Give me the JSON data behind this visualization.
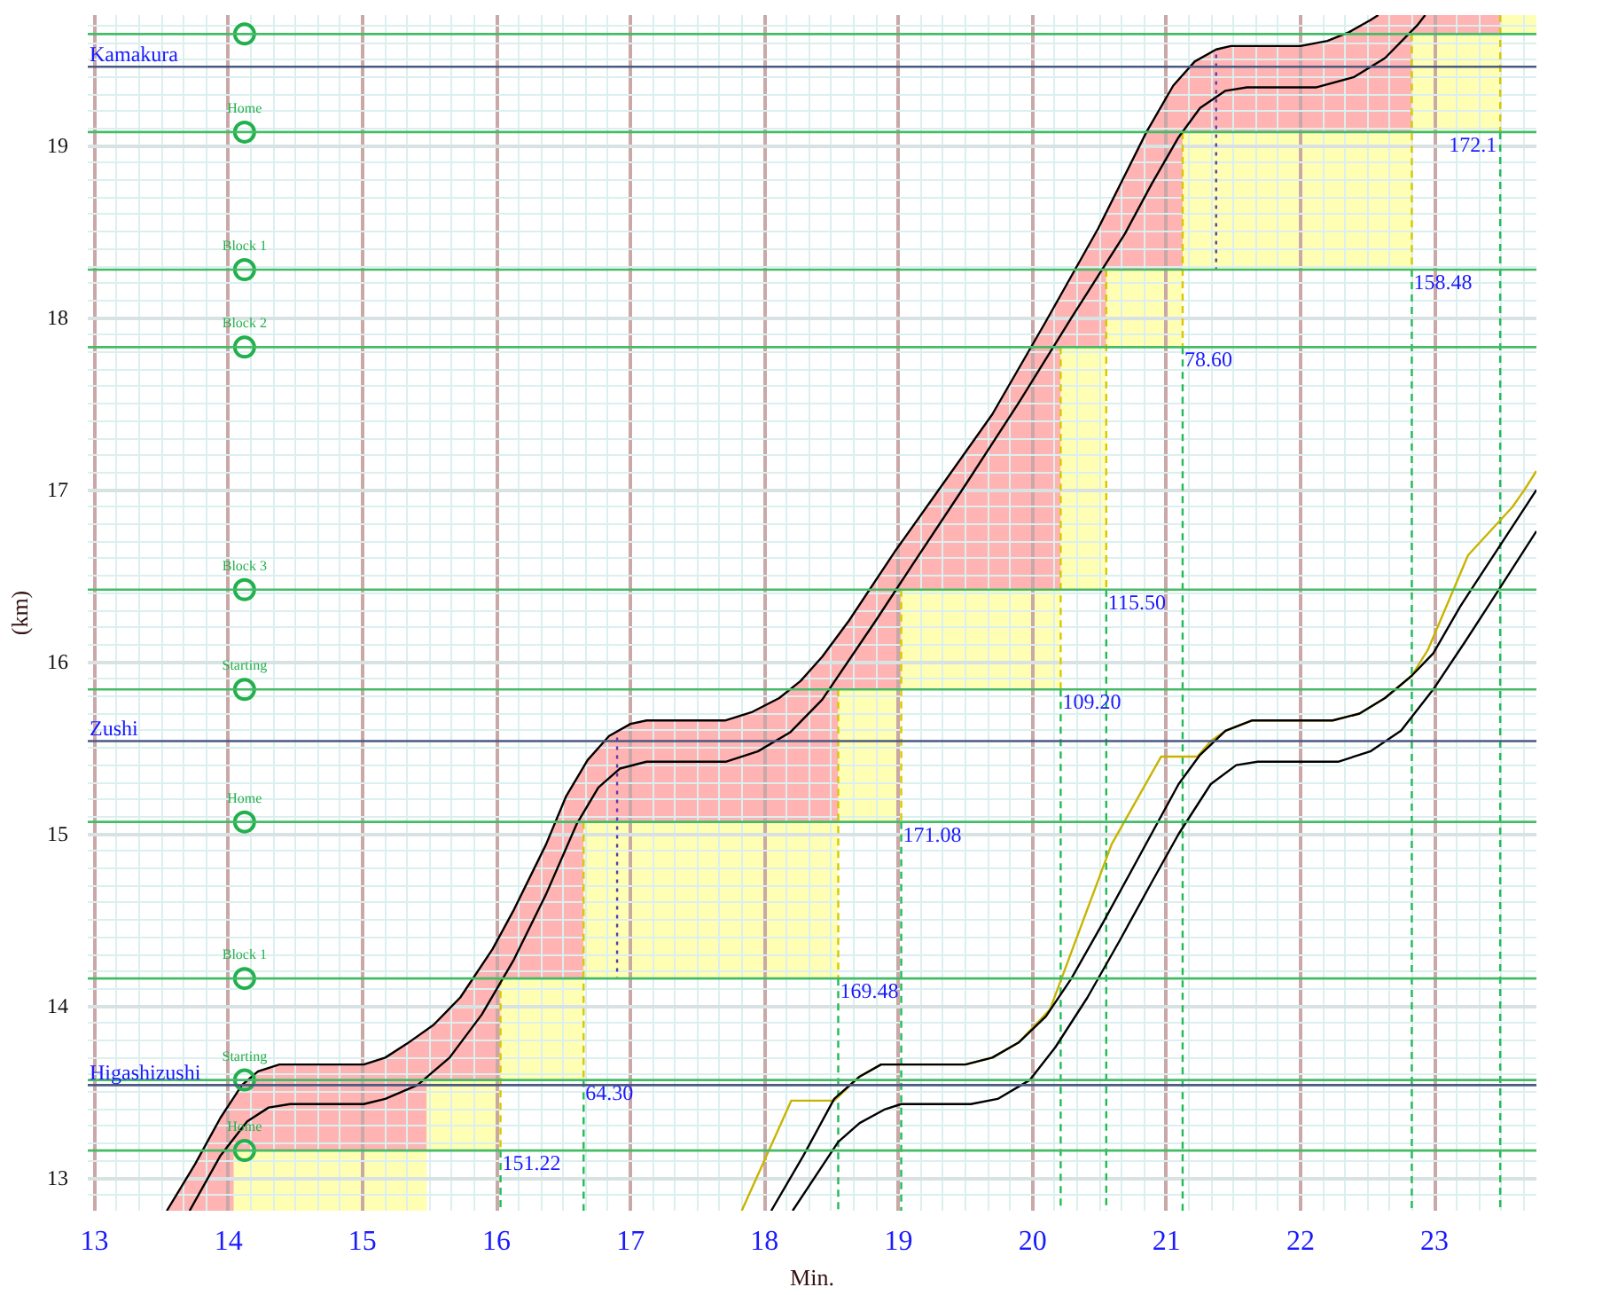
{
  "chart_data": {
    "type": "line",
    "xlabel": "Min.",
    "ylabel": "(km)",
    "xlim": [
      12.95,
      23.76
    ],
    "ylim": [
      12.81,
      19.76
    ],
    "xticks": [
      13,
      14,
      15,
      16,
      17,
      18,
      19,
      20,
      21,
      22,
      23
    ],
    "yticks": [
      13,
      14,
      15,
      16,
      17,
      18,
      19
    ],
    "grid": true,
    "ref_lines": [
      {
        "axis": "y",
        "value": 19.65,
        "color": "#44bb66"
      },
      {
        "axis": "y",
        "value": 19.08,
        "color": "#44bb66"
      },
      {
        "axis": "y",
        "value": 18.28,
        "color": "#44bb66"
      },
      {
        "axis": "y",
        "value": 17.83,
        "color": "#44bb66"
      },
      {
        "axis": "y",
        "value": 16.42,
        "color": "#44bb66"
      },
      {
        "axis": "y",
        "value": 15.84,
        "color": "#44bb66"
      },
      {
        "axis": "y",
        "value": 15.07,
        "color": "#44bb66"
      },
      {
        "axis": "y",
        "value": 14.16,
        "color": "#44bb66"
      },
      {
        "axis": "y",
        "value": 13.57,
        "color": "#44bb66"
      },
      {
        "axis": "y",
        "value": 13.16,
        "color": "#44bb66"
      },
      {
        "axis": "y",
        "value": 19.46,
        "label": "Kamakura",
        "color": "#4a5a80"
      },
      {
        "axis": "y",
        "value": 15.54,
        "label": "Zushi",
        "color": "#4a5a80"
      },
      {
        "axis": "y",
        "value": 13.54,
        "label": "Higashizushi",
        "color": "#4a5a80"
      }
    ],
    "annotations": [
      {
        "text": "151.22",
        "x": 16.03,
        "y": 13.16
      },
      {
        "text": "64.30",
        "x": 16.65,
        "y": 13.57
      },
      {
        "text": "169.48",
        "x": 18.55,
        "y": 14.16
      },
      {
        "text": "171.08",
        "x": 19.02,
        "y": 15.07
      },
      {
        "text": "109.20",
        "x": 20.21,
        "y": 15.84
      },
      {
        "text": "115.50",
        "x": 20.55,
        "y": 16.42
      },
      {
        "text": "78.60",
        "x": 21.12,
        "y": 17.83
      },
      {
        "text": "158.48",
        "x": 22.83,
        "y": 18.28
      },
      {
        "text": "172.1",
        "x": 23.49,
        "y": 19.08
      }
    ],
    "series": [
      {
        "color": "#ffb3b3",
        "x": [
          13.54,
          13.75,
          13.94,
          14.04,
          14.04,
          14.1,
          14.22,
          14.38,
          15.01,
          15.17,
          15.33,
          15.48,
          15.48,
          15.53,
          15.73,
          15.97,
          16.03,
          16.03,
          16.13,
          16.37,
          16.52,
          16.65,
          16.65,
          16.68,
          16.84,
          17.0,
          17.12,
          17.71,
          17.91,
          18.11,
          18.27,
          18.43,
          18.55,
          18.55,
          18.63,
          18.98,
          19.02,
          19.02,
          19.3,
          19.7,
          20.1,
          20.21,
          20.21,
          20.49,
          20.55,
          20.55,
          20.85,
          21.05,
          21.12,
          21.12,
          21.21,
          21.37,
          21.48,
          22.0,
          22.2,
          22.36,
          22.52,
          22.58,
          22.83,
          22.83,
          23.49
        ],
        "values": [
          null,
          null,
          null,
          null,
          null,
          null,
          null,
          null,
          null,
          null,
          null,
          null,
          null,
          null,
          null,
          null,
          null,
          null,
          null,
          null,
          null,
          null,
          null,
          null,
          null,
          null,
          null,
          null,
          null,
          null,
          null,
          null,
          null,
          null,
          null,
          null,
          null,
          null,
          null,
          null,
          null,
          null,
          null,
          null,
          null,
          null,
          null,
          null,
          null,
          null,
          null,
          null,
          null,
          null,
          null,
          null,
          null,
          null,
          null,
          null,
          null
        ],
        "upper": [
          12.81,
          13.08,
          13.35,
          13.47,
          13.47,
          13.54,
          13.62,
          13.66,
          13.66,
          13.7,
          13.78,
          13.86,
          13.86,
          13.89,
          14.05,
          14.33,
          14.42,
          14.42,
          14.56,
          14.94,
          15.22,
          15.39,
          15.39,
          15.43,
          15.57,
          15.64,
          15.66,
          15.66,
          15.71,
          15.79,
          15.89,
          16.03,
          16.16,
          16.16,
          16.24,
          16.65,
          16.69,
          16.69,
          17.0,
          17.44,
          17.98,
          18.13,
          18.13,
          18.52,
          18.61,
          18.61,
          19.08,
          19.35,
          19.41,
          19.41,
          19.49,
          19.56,
          19.58,
          19.58,
          19.61,
          19.66,
          19.73,
          19.76,
          19.76,
          19.76,
          19.76
        ],
        "lower": [
          12.81,
          12.81,
          12.81,
          12.81,
          13.16,
          13.16,
          13.16,
          13.16,
          13.16,
          13.16,
          13.16,
          13.16,
          13.57,
          13.57,
          13.57,
          13.57,
          13.57,
          14.16,
          14.16,
          14.16,
          14.16,
          14.16,
          15.07,
          15.07,
          15.07,
          15.07,
          15.07,
          15.07,
          15.07,
          15.07,
          15.07,
          15.07,
          15.07,
          15.84,
          15.84,
          15.84,
          15.84,
          16.42,
          16.42,
          16.42,
          16.42,
          16.42,
          17.83,
          17.83,
          17.83,
          18.28,
          18.28,
          18.28,
          18.28,
          19.08,
          19.08,
          19.08,
          19.08,
          19.08,
          19.08,
          19.08,
          19.08,
          19.08,
          19.08,
          19.65,
          19.65
        ]
      },
      {
        "color": "#ffffb3",
        "x": [
          14.04,
          15.48,
          15.48,
          16.03,
          16.03,
          16.65,
          16.65,
          18.55,
          18.55,
          19.02,
          19.02,
          20.21,
          20.21,
          20.55,
          20.55,
          21.12,
          21.12,
          22.83,
          22.83,
          23.49,
          23.49,
          23.76
        ],
        "values": [
          null,
          null,
          null,
          null,
          null,
          null,
          null,
          null,
          null,
          null,
          null,
          null,
          null,
          null,
          null,
          null,
          null,
          null,
          null,
          null,
          null,
          null
        ],
        "upper": [
          13.16,
          13.16,
          13.57,
          13.57,
          14.16,
          14.16,
          15.07,
          15.07,
          15.84,
          15.84,
          16.42,
          16.42,
          17.83,
          17.83,
          18.28,
          18.28,
          19.08,
          19.08,
          19.65,
          19.65,
          19.76,
          19.76
        ],
        "lower": [
          12.81,
          12.81,
          13.16,
          13.16,
          13.57,
          13.57,
          14.16,
          14.16,
          15.07,
          15.07,
          15.84,
          15.84,
          16.42,
          16.42,
          17.83,
          17.83,
          18.28,
          18.28,
          19.08,
          19.08,
          19.65,
          19.65
        ]
      },
      {
        "color": "#22bb55",
        "line_style": "dashed",
        "x": [
          16.03,
          16.03,
          null,
          16.65,
          16.65,
          null,
          18.55,
          18.55,
          null,
          19.02,
          19.02,
          null,
          20.21,
          20.21,
          null,
          20.55,
          20.55,
          null,
          21.12,
          21.12,
          null,
          22.83,
          22.83,
          null,
          23.49,
          23.49
        ],
        "values": [
          13.16,
          12.81,
          null,
          13.57,
          12.81,
          null,
          14.16,
          12.81,
          null,
          15.07,
          12.81,
          null,
          15.84,
          12.81,
          null,
          16.42,
          12.81,
          null,
          17.83,
          12.81,
          null,
          18.28,
          12.81,
          null,
          19.08,
          12.81
        ]
      },
      {
        "color": "#d8c800",
        "line_style": "dashed",
        "x": [
          16.03,
          16.03,
          null,
          16.65,
          16.65,
          null,
          18.55,
          18.55,
          null,
          19.02,
          19.02,
          null,
          20.21,
          20.21,
          null,
          20.55,
          20.55,
          null,
          21.12,
          21.12,
          null,
          22.83,
          22.83,
          null,
          23.49,
          23.49
        ],
        "values": [
          14.16,
          13.16,
          null,
          15.07,
          13.57,
          null,
          15.84,
          14.16,
          null,
          16.42,
          15.07,
          null,
          17.83,
          15.84,
          null,
          18.28,
          16.42,
          null,
          19.08,
          17.83,
          null,
          19.65,
          18.28,
          null,
          19.76,
          19.08
        ]
      },
      {
        "color": "#000000",
        "x": [
          13.54,
          13.75,
          13.94,
          14.1,
          14.22,
          14.38,
          15.01,
          15.17,
          15.33,
          15.53,
          15.73,
          15.97,
          16.13,
          16.37,
          16.52,
          16.68,
          16.84,
          17.0,
          17.12,
          17.71,
          17.91,
          18.11,
          18.27,
          18.43,
          18.63,
          18.98,
          19.3,
          19.7,
          20.1,
          20.49,
          20.85,
          21.05,
          21.21,
          21.37,
          21.48,
          22.0,
          22.2,
          22.36,
          22.52,
          22.58
        ],
        "values": [
          12.81,
          13.08,
          13.35,
          13.54,
          13.62,
          13.66,
          13.66,
          13.7,
          13.78,
          13.89,
          14.05,
          14.33,
          14.56,
          14.94,
          15.22,
          15.43,
          15.57,
          15.64,
          15.66,
          15.66,
          15.71,
          15.79,
          15.89,
          16.03,
          16.24,
          16.65,
          17.0,
          17.44,
          17.98,
          18.52,
          19.08,
          19.35,
          19.49,
          19.56,
          19.58,
          19.58,
          19.61,
          19.66,
          19.73,
          19.76
        ]
      },
      {
        "color": "#000000",
        "x": [
          13.71,
          13.94,
          14.14,
          14.3,
          14.46,
          15.01,
          15.17,
          15.41,
          15.65,
          15.89,
          16.13,
          16.37,
          16.6,
          16.76,
          16.92,
          17.12,
          17.71,
          17.95,
          18.19,
          18.43,
          18.83,
          19.1,
          19.5,
          19.9,
          20.29,
          20.69,
          20.89,
          21.09,
          21.25,
          21.44,
          21.6,
          22.12,
          22.4,
          22.63,
          22.87,
          22.93
        ],
        "values": [
          12.81,
          13.13,
          13.33,
          13.41,
          13.43,
          13.43,
          13.46,
          13.54,
          13.7,
          13.95,
          14.27,
          14.65,
          15.06,
          15.27,
          15.38,
          15.42,
          15.42,
          15.48,
          15.59,
          15.78,
          16.24,
          16.56,
          17.03,
          17.51,
          18.0,
          18.49,
          18.78,
          19.05,
          19.22,
          19.32,
          19.34,
          19.34,
          19.4,
          19.51,
          19.7,
          19.76
        ]
      },
      {
        "color": "#c8b400",
        "x": [
          17.83,
          18.2,
          18.52,
          18.71,
          18.87,
          19.5,
          19.7,
          19.9,
          20.13,
          20.59,
          20.96,
          21.23,
          21.33,
          21.44,
          21.64,
          22.24,
          22.44,
          22.63,
          22.83,
          22.95,
          23.25,
          23.58,
          23.67,
          23.76
        ],
        "values": [
          12.81,
          13.45,
          13.45,
          13.59,
          13.66,
          13.66,
          13.7,
          13.79,
          13.98,
          14.94,
          15.45,
          15.45,
          15.54,
          15.6,
          15.66,
          15.66,
          15.7,
          15.79,
          15.92,
          16.07,
          16.62,
          16.9,
          17.0,
          17.11
        ]
      },
      {
        "color": "#000000",
        "x": [
          18.05,
          18.29,
          18.52,
          18.71,
          18.87,
          19.5,
          19.7,
          19.9,
          20.1,
          20.29,
          20.53,
          21.09,
          21.25,
          21.44,
          21.64,
          22.24,
          22.44,
          22.63,
          22.83,
          22.99,
          23.19,
          23.29,
          23.76
        ],
        "values": [
          12.81,
          13.13,
          13.46,
          13.59,
          13.66,
          13.66,
          13.7,
          13.79,
          13.94,
          14.16,
          14.49,
          15.29,
          15.46,
          15.6,
          15.66,
          15.66,
          15.7,
          15.79,
          15.92,
          16.05,
          16.32,
          16.44,
          17.0
        ]
      },
      {
        "color": "#000000",
        "x": [
          18.21,
          18.55,
          18.71,
          18.9,
          19.02,
          19.54,
          19.74,
          19.98,
          20.17,
          20.41,
          20.65,
          20.89,
          21.09,
          21.33,
          21.52,
          21.68,
          22.28,
          22.52,
          22.75,
          22.99,
          23.23,
          23.43,
          23.76
        ],
        "values": [
          12.81,
          13.21,
          13.32,
          13.4,
          13.43,
          13.43,
          13.46,
          13.57,
          13.76,
          14.05,
          14.38,
          14.72,
          15.0,
          15.29,
          15.4,
          15.42,
          15.42,
          15.48,
          15.6,
          15.84,
          16.12,
          16.36,
          16.76
        ]
      },
      {
        "color": "#5b3fa8",
        "line_style": "dotted",
        "x": [
          16.9,
          16.9,
          null,
          21.37,
          21.37
        ],
        "values": [
          15.56,
          14.16,
          null,
          19.53,
          18.28
        ]
      },
      {
        "type": "scatter",
        "color": "#22b04c",
        "marker": "circle",
        "x": [
          14.12,
          14.12,
          14.12,
          14.12,
          14.12,
          14.12,
          14.12,
          14.12,
          14.12,
          14.12
        ],
        "values": [
          19.65,
          19.08,
          18.28,
          17.83,
          16.42,
          15.84,
          15.07,
          14.16,
          13.57,
          13.16
        ],
        "value_labels": [
          null,
          "Home",
          "Block 1",
          "Block 2",
          "Block 3",
          "Starting",
          "Home",
          "Block 1",
          "Starting",
          "Home"
        ]
      }
    ]
  }
}
